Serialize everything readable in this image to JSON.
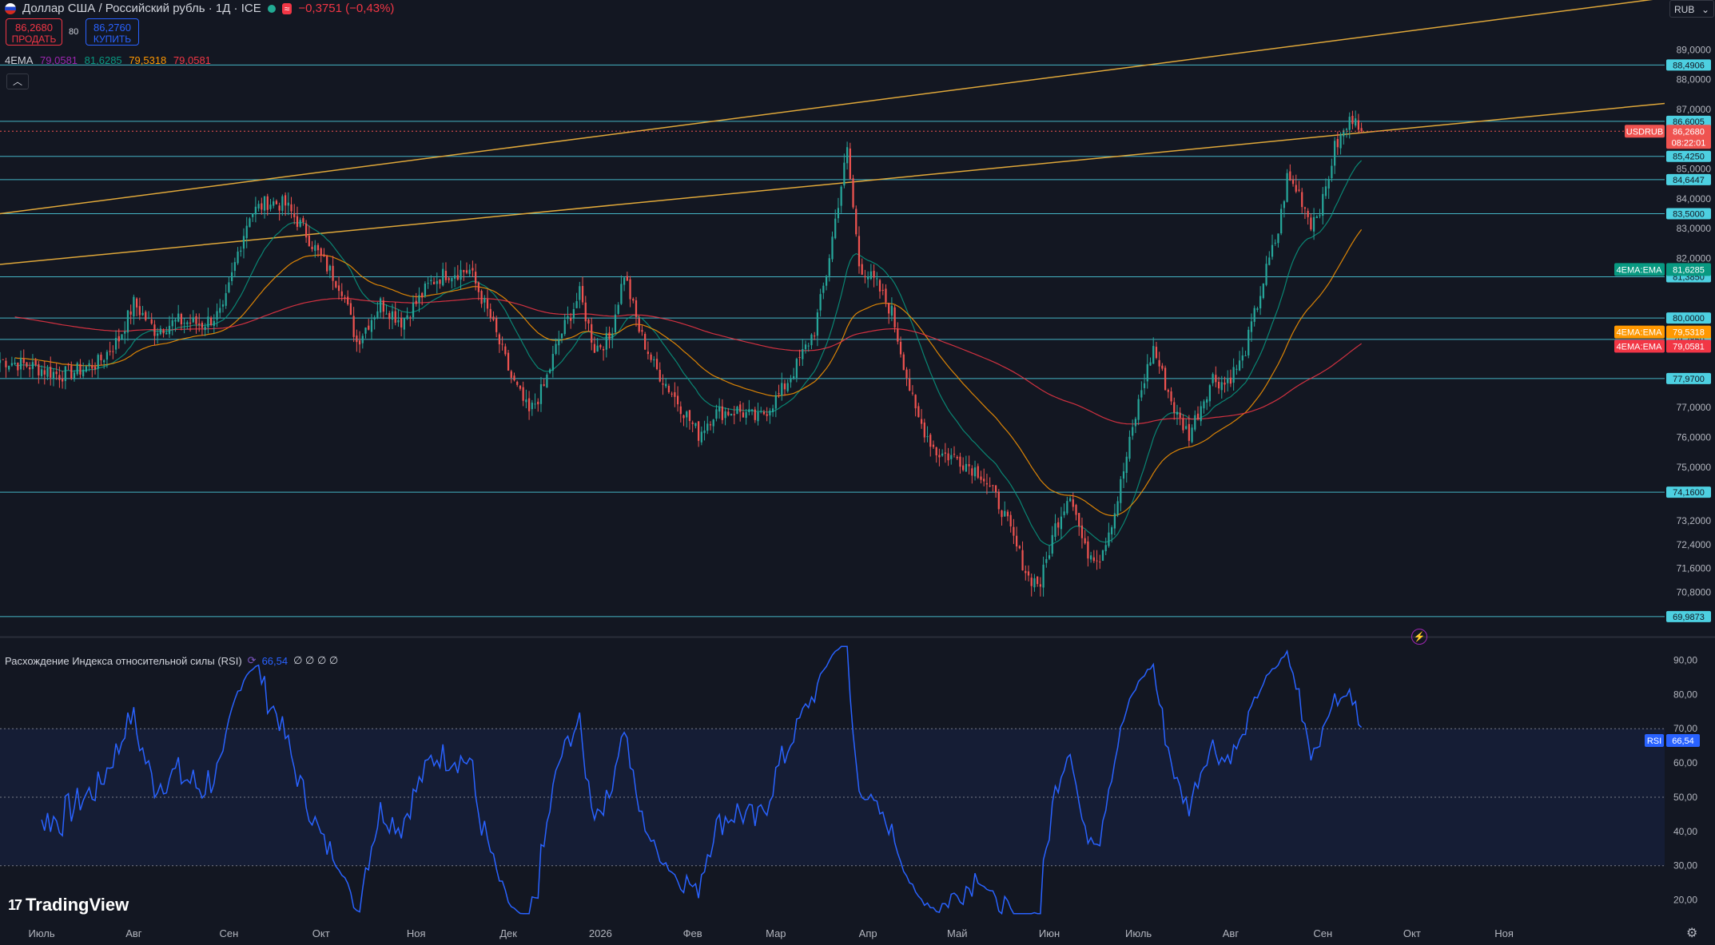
{
  "header": {
    "title": "Доллар США / Российский рубль · 1Д · ICE",
    "change": "−0,3751 (−0,43%)",
    "sell_price": "86,2680",
    "sell_label": "ПРОДАТЬ",
    "buy_price": "86,2760",
    "buy_label": "КУПИТЬ",
    "spread": "80",
    "currency": "RUB"
  },
  "ema_legend": {
    "name": "4EMA",
    "values": [
      "79,0581",
      "81,6285",
      "79,5318",
      "79,0581"
    ],
    "colors": [
      "#9c27b0",
      "#089981",
      "#ff9800",
      "#f23645"
    ]
  },
  "rsi_legend": {
    "name": "Расхождение Индекса относительной силы (RSI)",
    "value": "66,54",
    "extra": "∅ ∅ ∅ ∅"
  },
  "logo": "TradingView",
  "colors": {
    "background": "#131722",
    "up": "#26a69a",
    "down": "#ef5350",
    "hline": "#4dd0e1",
    "trend": "#e0a83a",
    "rsi": "#2962ff"
  },
  "chart_data": {
    "type": "candlestick",
    "symbol": "USDRUB",
    "price_axis_ticks": [
      "89,0000",
      "88,0000",
      "87,0000",
      "85,0000",
      "84,0000",
      "83,0000",
      "82,0000",
      "77,0000",
      "76,0000",
      "75,0000",
      "73,2000",
      "72,4000",
      "71,6000",
      "70,8000"
    ],
    "ylim": [
      69.5,
      90.0
    ],
    "x_labels": [
      {
        "label": "Июль",
        "d": 14
      },
      {
        "label": "Авг",
        "d": 45
      },
      {
        "label": "Сен",
        "d": 77
      },
      {
        "label": "Окт",
        "d": 108
      },
      {
        "label": "Ноя",
        "d": 140
      },
      {
        "label": "Дек",
        "d": 171
      },
      {
        "label": "2026",
        "d": 202
      },
      {
        "label": "Фев",
        "d": 233
      },
      {
        "label": "Мар",
        "d": 261
      },
      {
        "label": "Апр",
        "d": 292
      },
      {
        "label": "Май",
        "d": 322
      },
      {
        "label": "Июн",
        "d": 353
      },
      {
        "label": "Июль",
        "d": 383
      },
      {
        "label": "Авг",
        "d": 414
      },
      {
        "label": "Сен",
        "d": 445
      },
      {
        "label": "Окт",
        "d": 475
      },
      {
        "label": "Ноя",
        "d": 506
      }
    ],
    "xlim_days": [
      0,
      560
    ],
    "close_anchors": [
      [
        0,
        78.6
      ],
      [
        10,
        78.4
      ],
      [
        20,
        78.1
      ],
      [
        25,
        78.2
      ],
      [
        33,
        78.5
      ],
      [
        40,
        79.3
      ],
      [
        45,
        80.5
      ],
      [
        52,
        79.6
      ],
      [
        60,
        79.9
      ],
      [
        68,
        79.8
      ],
      [
        75,
        80.2
      ],
      [
        80,
        82.2
      ],
      [
        84,
        83.5
      ],
      [
        90,
        83.9
      ],
      [
        96,
        83.8
      ],
      [
        102,
        83.0
      ],
      [
        108,
        82.0
      ],
      [
        115,
        81.0
      ],
      [
        120,
        79.2
      ],
      [
        128,
        80.5
      ],
      [
        135,
        79.9
      ],
      [
        140,
        80.5
      ],
      [
        145,
        81.2
      ],
      [
        150,
        81.5
      ],
      [
        158,
        81.6
      ],
      [
        165,
        80.0
      ],
      [
        172,
        78.0
      ],
      [
        178,
        76.8
      ],
      [
        183,
        77.7
      ],
      [
        188,
        79.3
      ],
      [
        195,
        80.8
      ],
      [
        200,
        79.0
      ],
      [
        205,
        79.3
      ],
      [
        210,
        81.5
      ],
      [
        215,
        79.6
      ],
      [
        220,
        78.4
      ],
      [
        228,
        77.2
      ],
      [
        235,
        76.1
      ],
      [
        240,
        76.8
      ],
      [
        248,
        76.9
      ],
      [
        255,
        76.6
      ],
      [
        262,
        77.4
      ],
      [
        268,
        78.4
      ],
      [
        274,
        79.6
      ],
      [
        278,
        81.5
      ],
      [
        282,
        83.9
      ],
      [
        285,
        85.6
      ],
      [
        289,
        81.8
      ],
      [
        295,
        81.1
      ],
      [
        300,
        80.2
      ],
      [
        304,
        78.5
      ],
      [
        308,
        76.8
      ],
      [
        315,
        75.5
      ],
      [
        322,
        75.3
      ],
      [
        330,
        74.8
      ],
      [
        337,
        73.6
      ],
      [
        342,
        72.3
      ],
      [
        346,
        71.3
      ],
      [
        350,
        71.1
      ],
      [
        355,
        73.0
      ],
      [
        360,
        74.2
      ],
      [
        365,
        72.2
      ],
      [
        370,
        72.0
      ],
      [
        375,
        73.5
      ],
      [
        380,
        75.8
      ],
      [
        384,
        77.6
      ],
      [
        388,
        79.0
      ],
      [
        392,
        77.8
      ],
      [
        396,
        76.7
      ],
      [
        400,
        76.1
      ],
      [
        404,
        77.1
      ],
      [
        408,
        78.0
      ],
      [
        412,
        77.8
      ],
      [
        418,
        78.6
      ],
      [
        422,
        80.1
      ],
      [
        426,
        81.6
      ],
      [
        430,
        82.9
      ],
      [
        433,
        84.7
      ],
      [
        437,
        84.2
      ],
      [
        441,
        83.2
      ],
      [
        445,
        83.9
      ],
      [
        449,
        85.7
      ],
      [
        453,
        86.4
      ],
      [
        456,
        86.9
      ],
      [
        458,
        86.27
      ]
    ],
    "horizontal_levels": [
      "88,4906",
      "86,6005",
      "85,4250",
      "84,6447",
      "83,5000",
      "81,3850",
      "80,0000",
      "79,2850",
      "77,9700",
      "74,1600",
      "69,9873"
    ],
    "last_price_label": {
      "symbol": "USDRUB",
      "price": "86,2680",
      "time": "08:22:01"
    },
    "ema_labels": [
      {
        "name": "4EMA:EMA",
        "value": "81,6285",
        "color": "#089981"
      },
      {
        "name": "4EMA:EMA",
        "value": "79,5318",
        "color": "#ff9800"
      },
      {
        "name": "4EMA:EMA",
        "value": "79,0581",
        "color": "#9c27b0"
      },
      {
        "name": "4EMA:EMA",
        "value": "79,0581",
        "color": "#f23645"
      }
    ],
    "ema_periods": [
      20,
      50,
      200
    ],
    "ema_colors": [
      "#089981",
      "#ff9800",
      "#f23645"
    ],
    "trend_lines": [
      {
        "from": [
          0,
          83.5
        ],
        "to": [
          580,
          91.0
        ]
      },
      {
        "from": [
          0,
          81.8
        ],
        "to": [
          560,
          87.2
        ]
      }
    ],
    "rsi": {
      "ticks": [
        "90,00",
        "80,00",
        "70,00",
        "60,00",
        "50,00",
        "40,00",
        "30,00",
        "20,00"
      ],
      "ylim": [
        15,
        95
      ],
      "band": [
        30,
        70
      ],
      "last": "66,54",
      "label": "RSI"
    }
  }
}
